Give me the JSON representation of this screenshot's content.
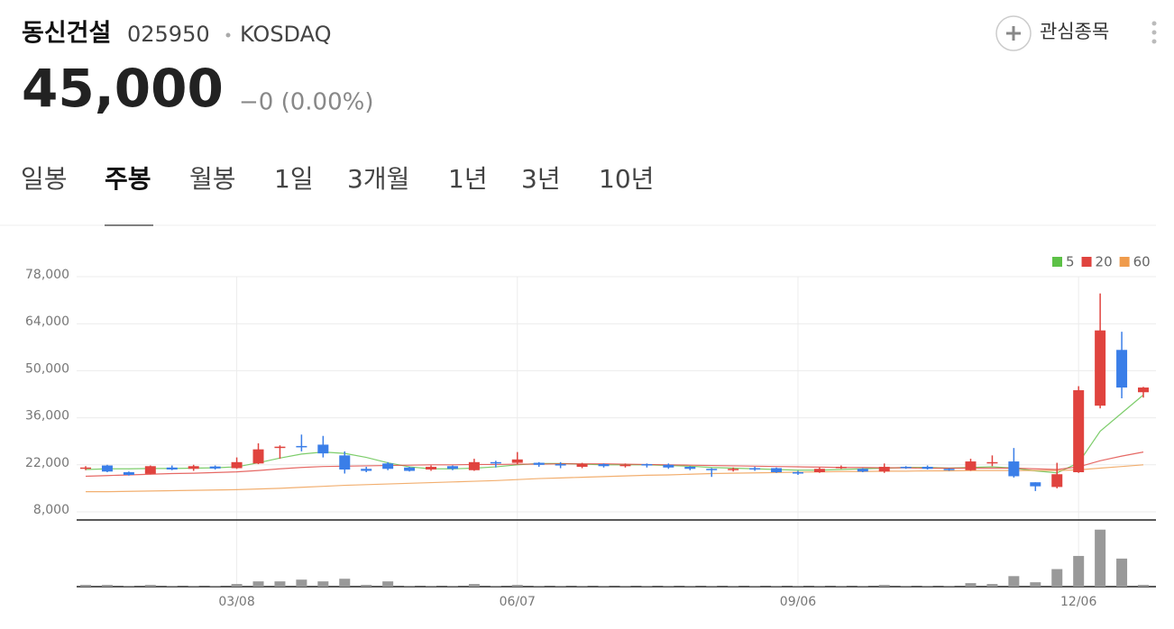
{
  "header": {
    "name": "동신건설",
    "code": "025950",
    "market": "KOSDAQ",
    "price": "45,000",
    "change": "−0 (0.00%)",
    "watch_button": "관심종목"
  },
  "tabs": [
    "일봉",
    "주봉",
    "월봉",
    "1일",
    "3개월",
    "1년",
    "3년",
    "10년"
  ],
  "active_tab": 1,
  "chart_data": {
    "type": "candlestick",
    "categories": [
      null,
      null,
      null,
      null,
      null,
      null,
      null,
      "03/08",
      null,
      null,
      null,
      null,
      null,
      null,
      null,
      null,
      null,
      null,
      null,
      null,
      "06/07",
      null,
      null,
      null,
      null,
      null,
      null,
      null,
      null,
      null,
      null,
      null,
      null,
      "09/06",
      null,
      null,
      null,
      null,
      null,
      null,
      null,
      null,
      null,
      null,
      null,
      null,
      "12/06",
      null,
      null,
      null
    ],
    "open": [
      20800,
      21800,
      19800,
      19300,
      21200,
      20800,
      21500,
      21000,
      22400,
      27000,
      27600,
      28000,
      24800,
      20800,
      22400,
      21200,
      20600,
      21600,
      20400,
      22800,
      22600,
      22600,
      22200,
      21400,
      22200,
      21800,
      22200,
      22000,
      21400,
      20800,
      20400,
      21000,
      21000,
      19800,
      19800,
      21000,
      20800,
      20000,
      21400,
      21400,
      20800,
      20400,
      22400,
      23000,
      16800,
      15400,
      19800,
      39600,
      56200,
      43600
    ],
    "high": [
      21600,
      22000,
      20000,
      21800,
      21800,
      22000,
      21800,
      24200,
      28400,
      27800,
      31000,
      30600,
      26000,
      21400,
      22800,
      21400,
      21800,
      21800,
      23800,
      23200,
      25800,
      22800,
      22800,
      22600,
      22400,
      22400,
      22400,
      22400,
      21600,
      21000,
      21200,
      21400,
      21200,
      20200,
      21200,
      21800,
      21000,
      22400,
      21600,
      21800,
      21000,
      23800,
      24800,
      27000,
      16800,
      22600,
      45400,
      73000,
      61600,
      45200
    ],
    "low": [
      20400,
      19800,
      18800,
      19200,
      20400,
      20200,
      20600,
      20800,
      22200,
      23800,
      26000,
      24200,
      19400,
      19800,
      20400,
      20000,
      20200,
      20400,
      20200,
      21200,
      22200,
      21400,
      21000,
      21000,
      21200,
      21200,
      21200,
      20800,
      20400,
      18400,
      20000,
      20200,
      19600,
      19000,
      19600,
      20800,
      19800,
      19600,
      20800,
      20600,
      20200,
      20200,
      21600,
      18200,
      14200,
      15000,
      19600,
      38800,
      41800,
      42000
    ],
    "close": [
      21200,
      20000,
      19000,
      21600,
      20600,
      21600,
      20900,
      22800,
      26600,
      27400,
      27200,
      25400,
      20600,
      20200,
      20800,
      20200,
      21400,
      20800,
      22800,
      22400,
      23600,
      22000,
      21800,
      22200,
      21600,
      22000,
      22000,
      21200,
      20800,
      20600,
      20800,
      20600,
      19800,
      19600,
      20800,
      21400,
      20000,
      21400,
      21000,
      20800,
      20400,
      23000,
      22800,
      18600,
      15600,
      19200,
      44200,
      62000,
      45000,
      45000
    ],
    "up_color": "#e0433e",
    "down_color": "#3a7ee8",
    "series": [
      {
        "name": "5",
        "color": "#5cc146",
        "values": [
          20600,
          20800,
          20800,
          20900,
          20900,
          21000,
          21100,
          21400,
          22600,
          24000,
          25200,
          25800,
          25400,
          24200,
          22600,
          21400,
          20800,
          20800,
          21000,
          21400,
          22000,
          22400,
          22400,
          22200,
          22000,
          22000,
          22000,
          21800,
          21600,
          21200,
          21000,
          20800,
          20600,
          20400,
          20400,
          20600,
          20800,
          21000,
          21200,
          21200,
          21000,
          21200,
          21400,
          21000,
          20200,
          19600,
          22600,
          32000,
          37400,
          42800
        ]
      },
      {
        "name": "20",
        "color": "#e0433e",
        "values": [
          18600,
          18800,
          19000,
          19200,
          19400,
          19500,
          19700,
          19900,
          20300,
          20800,
          21200,
          21500,
          21600,
          21700,
          21800,
          21900,
          22000,
          22000,
          22100,
          22100,
          22200,
          22200,
          22300,
          22300,
          22300,
          22200,
          22100,
          22000,
          21900,
          21800,
          21700,
          21600,
          21500,
          21400,
          21300,
          21200,
          21200,
          21100,
          21100,
          21000,
          21000,
          21000,
          21000,
          21000,
          20800,
          20600,
          21400,
          23200,
          24600,
          25800
        ]
      },
      {
        "name": "60",
        "color": "#ef9b4c",
        "values": [
          14000,
          14000,
          14100,
          14200,
          14300,
          14400,
          14500,
          14600,
          14800,
          15000,
          15300,
          15600,
          15900,
          16100,
          16300,
          16500,
          16700,
          16900,
          17100,
          17300,
          17600,
          17900,
          18100,
          18300,
          18500,
          18700,
          18900,
          19000,
          19200,
          19400,
          19500,
          19600,
          19700,
          19800,
          19900,
          20000,
          20000,
          20100,
          20100,
          20200,
          20200,
          20300,
          20300,
          20300,
          20300,
          20300,
          20500,
          21000,
          21500,
          22000
        ]
      }
    ],
    "volume": [
      2,
      2,
      1,
      2,
      1,
      1,
      1,
      3,
      6,
      6,
      8,
      6,
      9,
      2,
      6,
      1,
      1,
      1,
      3,
      1,
      2,
      1,
      1,
      1,
      1,
      1,
      1,
      1,
      1,
      1,
      1,
      1,
      1,
      1,
      1,
      1,
      1,
      2,
      1,
      1,
      1,
      4,
      3,
      12,
      5,
      20,
      35,
      65,
      32,
      2
    ],
    "volume_color": "#999999",
    "volume_ylim": [
      0,
      75
    ],
    "ylim": [
      8000,
      78000
    ],
    "yticks": [
      {
        "value": 8000,
        "label": "8,000"
      },
      {
        "value": 22000,
        "label": "22,000"
      },
      {
        "value": 36000,
        "label": "36,000"
      },
      {
        "value": 50000,
        "label": "50,000"
      },
      {
        "value": 64000,
        "label": "64,000"
      },
      {
        "value": 78000,
        "label": "78,000"
      }
    ],
    "grid": true
  }
}
